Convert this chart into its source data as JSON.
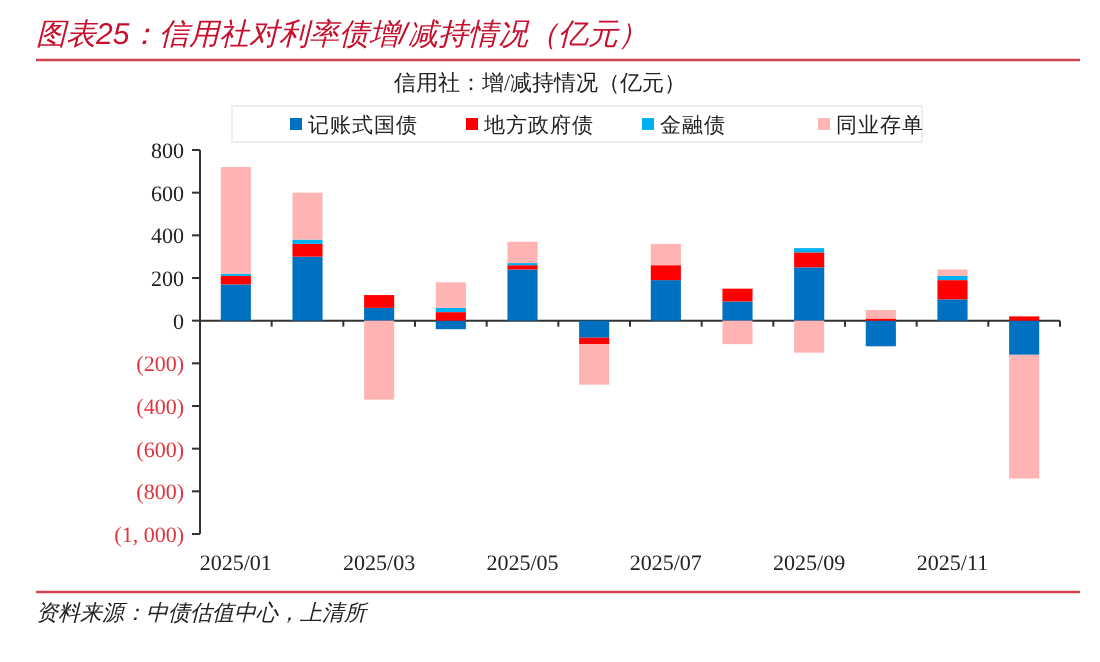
{
  "chart_data": {
    "type": "bar",
    "stacked": true,
    "title": "图表25：信用社对利率债增/减持情况（亿元）",
    "subtitle": "信用社：增/减持情况（亿元）",
    "categories": [
      "2025/01",
      null,
      "2025/03",
      null,
      "2025/05",
      null,
      "2025/07",
      null,
      "2025/09",
      null,
      "2025/11",
      null
    ],
    "series": [
      {
        "name": "记账式国债",
        "color": "#0070c0",
        "values": [
          170,
          300,
          60,
          -40,
          240,
          -80,
          190,
          90,
          250,
          -120,
          100,
          -160
        ]
      },
      {
        "name": "地方政府债",
        "color": "#ff0000",
        "values": [
          40,
          60,
          60,
          40,
          20,
          -30,
          70,
          60,
          70,
          10,
          90,
          20
        ]
      },
      {
        "name": "金融债",
        "color": "#00b0f0",
        "values": [
          10,
          20,
          0,
          20,
          10,
          0,
          0,
          0,
          20,
          0,
          20,
          0
        ]
      },
      {
        "name": "同业存单",
        "color": "#ffb3b3",
        "values": [
          500,
          220,
          -370,
          120,
          100,
          -190,
          100,
          -110,
          -150,
          40,
          30,
          -580
        ]
      }
    ],
    "ylim": [
      -1000,
      800
    ],
    "yticks": [
      800,
      600,
      400,
      200,
      0,
      {
        "value": -200,
        "label": "(200)"
      },
      {
        "value": -400,
        "label": "(400)"
      },
      {
        "value": -600,
        "label": "(600)"
      },
      {
        "value": -800,
        "label": "(800)"
      },
      {
        "value": -1000,
        "label": "(1, 000)"
      }
    ],
    "legend": "top",
    "annotations": [
      "资料来源：中债估值中心，上清所"
    ]
  }
}
